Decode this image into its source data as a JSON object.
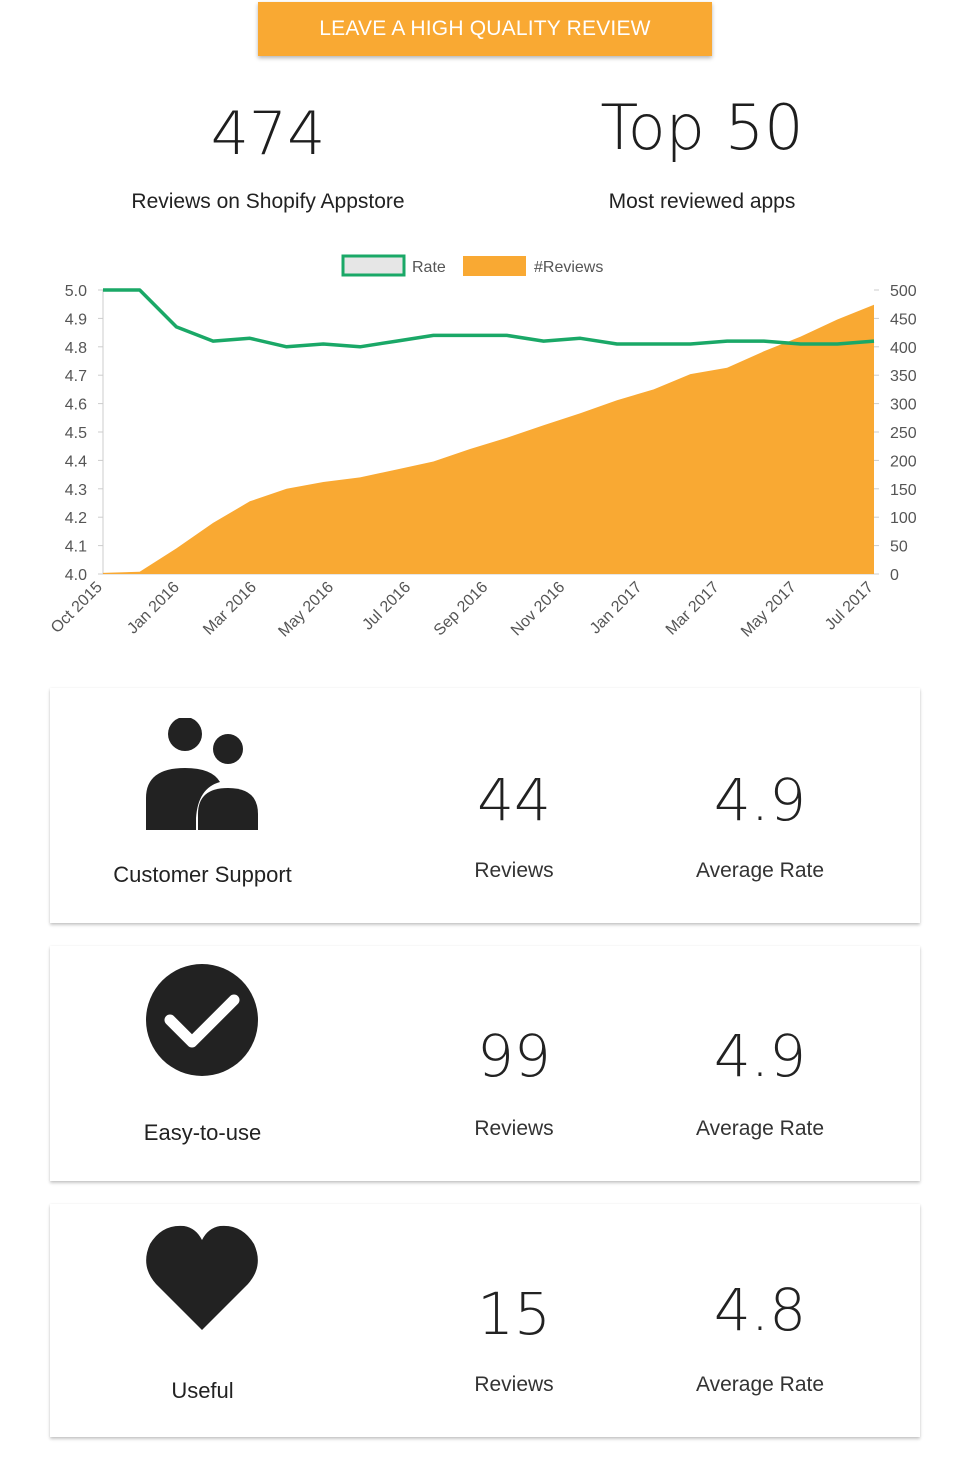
{
  "cta": {
    "label": "LEAVE A HIGH QUALITY REVIEW"
  },
  "stats": {
    "reviews": {
      "value": "474",
      "caption": "Reviews on Shopify Appstore"
    },
    "rank": {
      "value": "Top 50",
      "caption": "Most reviewed apps"
    }
  },
  "colors": {
    "accent": "#f9a933",
    "rate_line": "#1aa867",
    "text": "#222222"
  },
  "chart_data": {
    "type": "line+area",
    "legend": [
      {
        "name": "Rate",
        "style": "line"
      },
      {
        "name": "#Reviews",
        "style": "area"
      }
    ],
    "legend_position": "top-center",
    "x_tick_labels": [
      "Oct 2015",
      "Jan 2016",
      "Mar 2016",
      "May 2016",
      "Jul 2016",
      "Sep 2016",
      "Nov 2016",
      "Jan 2017",
      "Mar 2017",
      "May 2017",
      "Jul 2017"
    ],
    "y_left": {
      "label": "Rate",
      "min": 4.0,
      "max": 5.0,
      "ticks": [
        "4.0",
        "4.1",
        "4.2",
        "4.3",
        "4.4",
        "4.5",
        "4.6",
        "4.7",
        "4.8",
        "4.9",
        "5.0"
      ]
    },
    "y_right": {
      "label": "#Reviews",
      "min": 0,
      "max": 500,
      "ticks": [
        "0",
        "50",
        "100",
        "150",
        "200",
        "250",
        "300",
        "350",
        "400",
        "450",
        "500"
      ]
    },
    "x_index": [
      0,
      1,
      2,
      3,
      4,
      5,
      6,
      7,
      8,
      9,
      10,
      11,
      12,
      13,
      14,
      15,
      16,
      17,
      18,
      19,
      20,
      21
    ],
    "series": [
      {
        "name": "Rate",
        "axis": "left",
        "values": [
          5.0,
          5.0,
          4.87,
          4.82,
          4.83,
          4.8,
          4.81,
          4.8,
          4.82,
          4.84,
          4.84,
          4.84,
          4.82,
          4.83,
          4.81,
          4.81,
          4.81,
          4.82,
          4.82,
          4.81,
          4.81,
          4.82
        ]
      },
      {
        "name": "#Reviews",
        "axis": "right",
        "values": [
          2,
          4,
          45,
          90,
          128,
          150,
          162,
          170,
          184,
          198,
          220,
          240,
          262,
          283,
          306,
          325,
          352,
          363,
          392,
          418,
          448,
          474
        ]
      }
    ]
  },
  "cards": [
    {
      "icon": "users-icon",
      "label": "Customer Support",
      "reviews": "44",
      "reviews_label": "Reviews",
      "rate": "4.9",
      "rate_label": "Average Rate"
    },
    {
      "icon": "check-circle-icon",
      "label": "Easy-to-use",
      "reviews": "99",
      "reviews_label": "Reviews",
      "rate": "4.9",
      "rate_label": "Average Rate"
    },
    {
      "icon": "heart-icon",
      "label": "Useful",
      "reviews": "15",
      "reviews_label": "Reviews",
      "rate": "4.8",
      "rate_label": "Average Rate"
    }
  ]
}
